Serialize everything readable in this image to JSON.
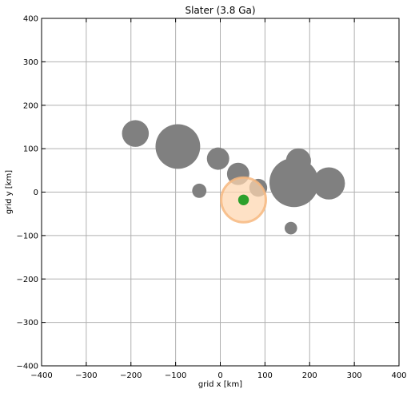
{
  "chart_data": {
    "type": "scatter",
    "title": "Slater (3.8 Ga)",
    "xlabel": "grid x [km]",
    "ylabel": "grid y [km]",
    "xlim": [
      -400,
      400
    ],
    "ylim": [
      -400,
      400
    ],
    "xticks": [
      -400,
      -300,
      -200,
      -100,
      0,
      100,
      200,
      300,
      400
    ],
    "yticks": [
      -400,
      -300,
      -200,
      -100,
      0,
      100,
      200,
      300,
      400
    ],
    "xtick_labels": [
      "−400",
      "−300",
      "−200",
      "−100",
      "0",
      "100",
      "200",
      "300",
      "400"
    ],
    "ytick_labels": [
      "−400",
      "−300",
      "−200",
      "−100",
      "0",
      "100",
      "200",
      "300",
      "400"
    ],
    "grid": true,
    "colors": {
      "craters": "#808080",
      "target_halo": "#FDD5AE",
      "target_halo_edge": "#F7B980",
      "target_center": "#2CA02C"
    },
    "series": [
      {
        "points": [
          {
            "x": -190,
            "y": 135,
            "r": 30
          },
          {
            "x": -95,
            "y": 105,
            "r": 50
          },
          {
            "x": -5,
            "y": 77,
            "r": 25
          },
          {
            "x": 40,
            "y": 42,
            "r": 25
          },
          {
            "x": -47,
            "y": 3,
            "r": 16
          },
          {
            "x": 85,
            "y": 10,
            "r": 20
          },
          {
            "x": 175,
            "y": 72,
            "r": 28
          },
          {
            "x": 165,
            "y": 22,
            "r": 55
          },
          {
            "x": 243,
            "y": 20,
            "r": 36
          },
          {
            "x": 158,
            "y": -83,
            "r": 14
          }
        ]
      },
      {
        "points": [
          {
            "x": 52,
            "y": -18,
            "r": 50
          }
        ]
      },
      {
        "points": [
          {
            "x": 52,
            "y": -18,
            "r": 12
          }
        ]
      }
    ]
  }
}
